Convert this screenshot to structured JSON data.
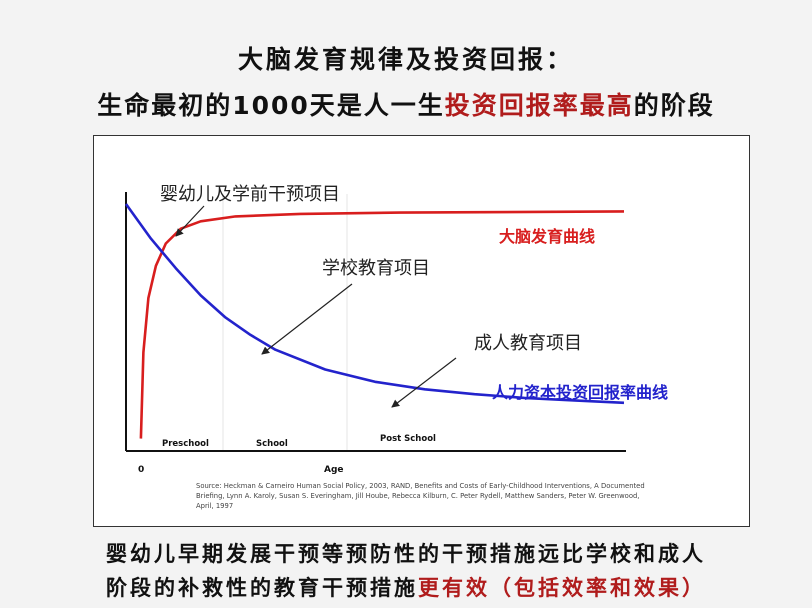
{
  "headline": {
    "line1": "大脑发育规律及投资回报：",
    "line2_pre": "生命最初的1000天是人一生",
    "line2_highlight": "投资回报率最高",
    "line2_post": "的阶段"
  },
  "chart_data": {
    "type": "line",
    "x_axis_zero": "0",
    "xlabel": "Age",
    "ylabel": "",
    "ylim": [
      0,
      100
    ],
    "xlim": [
      0,
      100
    ],
    "stages": [
      "Preschool",
      "School",
      "Post School"
    ],
    "series": [
      {
        "name": "大脑发育曲线",
        "color": "#d81e1e",
        "points": [
          [
            3,
            5
          ],
          [
            3.5,
            40
          ],
          [
            4.5,
            62
          ],
          [
            6,
            75
          ],
          [
            8,
            84
          ],
          [
            11,
            90
          ],
          [
            15,
            93
          ],
          [
            22,
            95
          ],
          [
            35,
            96
          ],
          [
            55,
            96.5
          ],
          [
            100,
            97
          ]
        ]
      },
      {
        "name": "人力资本投资回报率曲线",
        "color": "#2323cc",
        "points": [
          [
            0,
            100
          ],
          [
            5,
            86
          ],
          [
            10,
            74
          ],
          [
            15,
            63
          ],
          [
            20,
            54
          ],
          [
            25,
            47
          ],
          [
            30,
            41
          ],
          [
            40,
            33
          ],
          [
            50,
            28
          ],
          [
            60,
            25
          ],
          [
            70,
            23
          ],
          [
            80,
            21.5
          ],
          [
            90,
            20.5
          ],
          [
            100,
            19.5
          ]
        ]
      }
    ],
    "annotations": [
      {
        "text": "婴幼儿及学前干预项目"
      },
      {
        "text": "学校教育项目"
      },
      {
        "text": "成人教育项目"
      }
    ],
    "source": [
      "Source: Heckman & Carneiro Human Social Policy, 2003, RAND, Benefits and Costs of Early-Childhood Interventions, A Documented",
      "Briefing, Lynn A. Karoly, Susan S. Everingham, Jill Hoube, Rebecca Kilburn, C. Peter Rydell, Matthew Sanders, Peter W. Greenwood,",
      "April, 1997"
    ]
  },
  "caption": {
    "line1": "婴幼儿早期发展干预等预防性的干预措施远比学校和成人",
    "line2_pre": "阶段的补救性的教育干预措施",
    "line2_highlight": "更有效（包括效率和效果）"
  }
}
